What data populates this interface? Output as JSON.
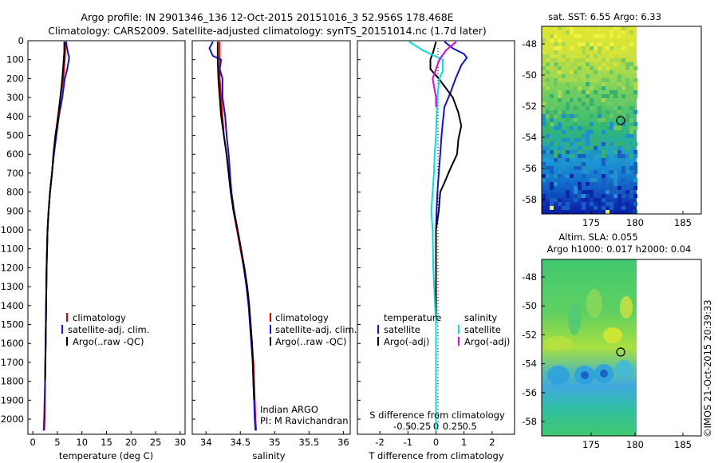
{
  "title_line1": "Argo profile: IN 2901346_136 12-Oct-2015 20151016_3 52.956S 178.468E",
  "title_line2": "Climatology: CARS2009. Satellite-adjusted climatology: synTS_20151014.nc (1.7d later)",
  "watermark": "©IMOS 21-Oct-2015 20:39:33",
  "colors": {
    "climatology": "#e00000",
    "satellite": "#1010e0",
    "argo": "#000000",
    "salinity_sat": "#00e0e0",
    "salinity_argo": "#e000e0"
  },
  "chart_data": [
    {
      "id": "temperature",
      "type": "line",
      "xlabel": "temperature (deg C)",
      "xlim": [
        -1,
        31
      ],
      "xticks": [
        0,
        5,
        10,
        15,
        20,
        25,
        30
      ],
      "ylim": [
        0,
        2080
      ],
      "yticks": [
        0,
        100,
        200,
        300,
        400,
        500,
        600,
        700,
        800,
        900,
        1000,
        1100,
        1200,
        1300,
        1400,
        1500,
        1600,
        1700,
        1800,
        1900,
        2000
      ],
      "legend": [
        "climatology",
        "satellite-adj. clim.",
        "Argo(..raw -QC)"
      ],
      "series": [
        {
          "name": "climatology",
          "color": "#e00000",
          "points": [
            [
              6.6,
              5
            ],
            [
              6.6,
              50
            ],
            [
              6.5,
              100
            ],
            [
              6.2,
              200
            ],
            [
              5.6,
              300
            ],
            [
              5.1,
              400
            ],
            [
              4.6,
              500
            ],
            [
              4.2,
              600
            ],
            [
              3.9,
              700
            ],
            [
              3.5,
              800
            ],
            [
              3.2,
              900
            ],
            [
              3.0,
              1000
            ],
            [
              2.8,
              1200
            ],
            [
              2.7,
              1400
            ],
            [
              2.6,
              1600
            ],
            [
              2.5,
              1800
            ],
            [
              2.3,
              2000
            ],
            [
              2.2,
              2060
            ]
          ]
        },
        {
          "name": "satellite-adj. clim.",
          "color": "#1010e0",
          "points": [
            [
              6.8,
              5
            ],
            [
              6.9,
              30
            ],
            [
              7.2,
              70
            ],
            [
              7.4,
              90
            ],
            [
              7.0,
              150
            ],
            [
              6.5,
              200
            ],
            [
              6.0,
              300
            ],
            [
              5.3,
              400
            ],
            [
              4.8,
              500
            ],
            [
              4.3,
              600
            ],
            [
              3.9,
              700
            ],
            [
              3.5,
              800
            ],
            [
              3.2,
              900
            ],
            [
              3.0,
              1000
            ],
            [
              2.8,
              1200
            ],
            [
              2.7,
              1400
            ],
            [
              2.6,
              1600
            ],
            [
              2.5,
              1800
            ],
            [
              2.4,
              2000
            ],
            [
              2.3,
              2060
            ]
          ]
        },
        {
          "name": "Argo(..raw -QC)",
          "color": "#000000",
          "points": [
            [
              6.4,
              5
            ],
            [
              6.4,
              60
            ],
            [
              6.3,
              100
            ],
            [
              6.0,
              200
            ],
            [
              5.6,
              300
            ],
            [
              5.2,
              400
            ],
            [
              4.6,
              500
            ],
            [
              4.2,
              600
            ],
            [
              3.9,
              700
            ],
            [
              3.5,
              800
            ],
            [
              3.2,
              900
            ],
            [
              3.0,
              1000
            ],
            [
              2.8,
              1200
            ],
            [
              2.7,
              1400
            ],
            [
              2.6,
              1600
            ],
            [
              2.5,
              1800
            ]
          ]
        }
      ]
    },
    {
      "id": "salinity",
      "type": "line",
      "xlabel": "salinity",
      "xlim": [
        33.8,
        36.1
      ],
      "xticks": [
        34,
        34.5,
        35,
        35.5,
        36
      ],
      "ylim": [
        0,
        2080
      ],
      "legend": [
        "climatology",
        "satellite-adj. clim.",
        "Argo(..raw -QC)"
      ],
      "annotation": [
        "Indian ARGO",
        "PI: M Ravichandran"
      ],
      "series": [
        {
          "name": "climatology",
          "color": "#e00000",
          "points": [
            [
              34.2,
              5
            ],
            [
              34.2,
              100
            ],
            [
              34.2,
              200
            ],
            [
              34.22,
              300
            ],
            [
              34.24,
              400
            ],
            [
              34.26,
              500
            ],
            [
              34.3,
              600
            ],
            [
              34.33,
              700
            ],
            [
              34.36,
              800
            ],
            [
              34.4,
              900
            ],
            [
              34.45,
              1000
            ],
            [
              34.5,
              1100
            ],
            [
              34.55,
              1200
            ],
            [
              34.59,
              1300
            ],
            [
              34.62,
              1400
            ],
            [
              34.65,
              1500
            ],
            [
              34.67,
              1600
            ],
            [
              34.69,
              1700
            ],
            [
              34.7,
              1800
            ],
            [
              34.71,
              1900
            ],
            [
              34.72,
              2000
            ],
            [
              34.73,
              2060
            ]
          ]
        },
        {
          "name": "satellite-adj. clim.",
          "color": "#1010e0",
          "points": [
            [
              34.1,
              5
            ],
            [
              34.05,
              40
            ],
            [
              34.1,
              80
            ],
            [
              34.22,
              100
            ],
            [
              34.2,
              150
            ],
            [
              34.24,
              200
            ],
            [
              34.24,
              300
            ],
            [
              34.28,
              400
            ],
            [
              34.3,
              500
            ],
            [
              34.33,
              600
            ],
            [
              34.35,
              700
            ],
            [
              34.37,
              800
            ],
            [
              34.41,
              900
            ],
            [
              34.46,
              1000
            ],
            [
              34.51,
              1100
            ],
            [
              34.55,
              1200
            ],
            [
              34.59,
              1300
            ],
            [
              34.62,
              1400
            ],
            [
              34.64,
              1500
            ],
            [
              34.66,
              1600
            ],
            [
              34.68,
              1700
            ],
            [
              34.69,
              1800
            ],
            [
              34.7,
              1900
            ],
            [
              34.71,
              2000
            ],
            [
              34.72,
              2060
            ]
          ]
        },
        {
          "name": "Argo(..raw -QC)",
          "color": "#000000",
          "points": [
            [
              34.17,
              5
            ],
            [
              34.17,
              100
            ],
            [
              34.18,
              200
            ],
            [
              34.2,
              300
            ],
            [
              34.22,
              400
            ],
            [
              34.26,
              500
            ],
            [
              34.3,
              600
            ],
            [
              34.33,
              700
            ],
            [
              34.36,
              800
            ],
            [
              34.4,
              900
            ],
            [
              34.46,
              1000
            ],
            [
              34.51,
              1100
            ],
            [
              34.56,
              1200
            ],
            [
              34.6,
              1300
            ],
            [
              34.63,
              1400
            ],
            [
              34.65,
              1500
            ],
            [
              34.67,
              1600
            ],
            [
              34.68,
              1700
            ],
            [
              34.69,
              1800
            ],
            [
              34.7,
              1900
            ]
          ]
        }
      ]
    },
    {
      "id": "difference",
      "type": "line",
      "xlabel": "T difference from climatology",
      "xlabel_top": "S difference from climatology",
      "xlim": [
        -2.8,
        2.8
      ],
      "xticks_T": [
        -2,
        -1,
        0,
        1,
        2
      ],
      "xticks_S": [
        "-0.5",
        "-0.25",
        "0",
        "0.25",
        "0.5"
      ],
      "ylim": [
        0,
        2080
      ],
      "legend_temperature": {
        "heading": "temperature",
        "items": [
          "satellite",
          "Argo(-adj)"
        ]
      },
      "legend_salinity": {
        "heading": "salinity",
        "items": [
          "satellite",
          "Argo(-adj)"
        ]
      },
      "series": [
        {
          "name": "temperature satellite",
          "color": "#1010e0",
          "points": [
            [
              0.3,
              5
            ],
            [
              0.6,
              40
            ],
            [
              1.0,
              70
            ],
            [
              1.1,
              90
            ],
            [
              0.9,
              130
            ],
            [
              0.7,
              200
            ],
            [
              0.5,
              280
            ],
            [
              0.3,
              350
            ],
            [
              0.25,
              420
            ],
            [
              0.2,
              500
            ],
            [
              0.15,
              600
            ],
            [
              0.1,
              700
            ],
            [
              0.05,
              800
            ],
            [
              0.02,
              900
            ],
            [
              0,
              1000
            ],
            [
              0,
              1200
            ],
            [
              0,
              1500
            ],
            [
              0,
              2060
            ]
          ]
        },
        {
          "name": "temperature Argo",
          "color": "#000000",
          "points": [
            [
              0,
              5
            ],
            [
              -0.1,
              60
            ],
            [
              -0.2,
              100
            ],
            [
              -0.2,
              150
            ],
            [
              0.1,
              200
            ],
            [
              0.4,
              260
            ],
            [
              0.6,
              300
            ],
            [
              0.8,
              380
            ],
            [
              0.9,
              450
            ],
            [
              0.8,
              520
            ],
            [
              0.75,
              600
            ],
            [
              0.5,
              680
            ],
            [
              0.3,
              750
            ],
            [
              0.15,
              800
            ],
            [
              0.1,
              900
            ],
            [
              0,
              1000
            ],
            [
              0,
              1200
            ],
            [
              0,
              1500
            ],
            [
              0,
              1800
            ]
          ]
        },
        {
          "name": "salinity satellite",
          "color": "#00e0e0",
          "points": [
            [
              -0.4,
              5
            ],
            [
              -0.2,
              50
            ],
            [
              0.1,
              100
            ],
            [
              0.1,
              160
            ],
            [
              0.05,
              200
            ],
            [
              0.02,
              300
            ],
            [
              0.01,
              400
            ],
            [
              0,
              500
            ],
            [
              -0.02,
              600
            ],
            [
              -0.03,
              700
            ],
            [
              -0.05,
              800
            ],
            [
              -0.07,
              900
            ],
            [
              -0.05,
              1000
            ],
            [
              -0.04,
              1200
            ],
            [
              0,
              1500
            ],
            [
              0,
              2060
            ]
          ]
        },
        {
          "name": "salinity Argo",
          "color": "#e000e0",
          "points": [
            [
              0.3,
              5
            ],
            [
              0.15,
              50
            ],
            [
              0.05,
              100
            ],
            [
              -0.05,
              200
            ],
            [
              0,
              300
            ],
            [
              0,
              350
            ]
          ]
        }
      ]
    }
  ],
  "map_sst": {
    "title": "sat. SST: 6.55 Argo: 6.33",
    "xticks": [
      "175",
      "180",
      "185"
    ],
    "yticks": [
      "-48",
      "-50",
      "-52",
      "-54",
      "-56",
      "-58"
    ]
  },
  "map_sla": {
    "title_line1": "Altim. SLA: 0.055",
    "title_line2": "Argo h1000: 0.017 h2000: 0.04",
    "xticks": [
      "175",
      "180",
      "185"
    ],
    "yticks": [
      "-48",
      "-50",
      "-52",
      "-54",
      "-56",
      "-58"
    ]
  }
}
